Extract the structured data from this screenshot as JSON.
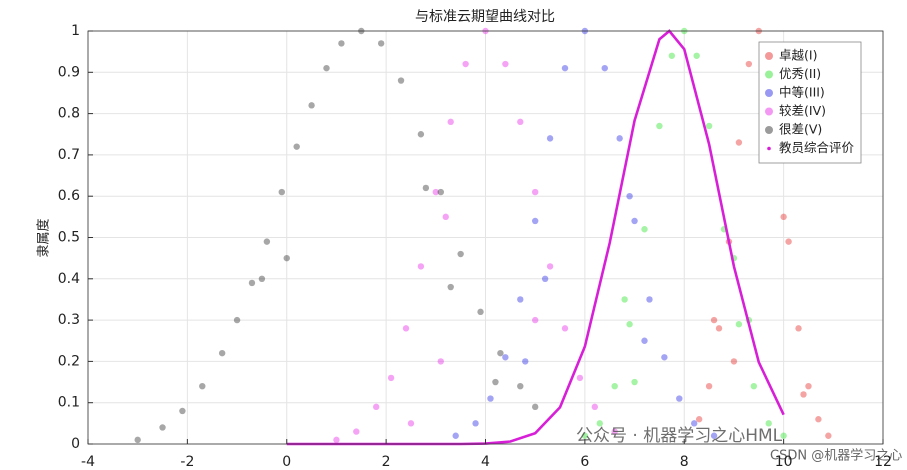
{
  "chart_data": {
    "type": "scatter",
    "title": "与标准云期望曲线对比",
    "y_label": "隶属度",
    "xlim": [
      -4,
      12
    ],
    "xticks": [
      -4,
      -2,
      0,
      2,
      4,
      6,
      8,
      10,
      12
    ],
    "ylim": [
      0,
      1
    ],
    "yticks": [
      0,
      0.1,
      0.2,
      0.3,
      0.4,
      0.5,
      0.6,
      0.7,
      0.8,
      0.9,
      1
    ],
    "grid": true,
    "legend": "upper right",
    "series": [
      {
        "name": "卓越(I)",
        "color": "#e51c1c",
        "mode": "markers",
        "x": [
          8.3,
          8.5,
          8.7,
          8.9,
          9.1,
          9.3,
          9.5,
          9.7,
          9.9,
          10.1,
          10.3,
          10.5,
          10.7,
          10.9,
          8.6,
          10.0,
          9.0,
          10.4
        ],
        "values": [
          0.06,
          0.14,
          0.28,
          0.49,
          0.73,
          0.92,
          1,
          0.92,
          0.73,
          0.49,
          0.28,
          0.14,
          0.06,
          0.02,
          0.3,
          0.55,
          0.2,
          0.12
        ]
      },
      {
        "name": "优秀(II)",
        "color": "#1ee01e",
        "mode": "markers",
        "x": [
          6.0,
          6.3,
          6.6,
          6.9,
          7.2,
          7.5,
          7.75,
          8,
          8.25,
          8.5,
          8.8,
          9.1,
          9.4,
          9.7,
          10,
          6.8,
          9.0,
          7.0,
          9.3
        ],
        "values": [
          0.02,
          0.05,
          0.14,
          0.29,
          0.52,
          0.77,
          0.94,
          1,
          0.94,
          0.77,
          0.52,
          0.29,
          0.14,
          0.05,
          0.02,
          0.35,
          0.45,
          0.15,
          0.3
        ]
      },
      {
        "name": "中等(III)",
        "color": "#1c1ce5",
        "mode": "markers",
        "x": [
          3.4,
          3.8,
          4.1,
          4.4,
          4.7,
          5.0,
          5.3,
          5.6,
          6,
          6.4,
          6.7,
          7.0,
          7.3,
          7.6,
          7.9,
          8.2,
          8.6,
          4.8,
          6.9,
          7.2,
          5.2
        ],
        "values": [
          0.02,
          0.05,
          0.11,
          0.21,
          0.35,
          0.54,
          0.74,
          0.91,
          1,
          0.91,
          0.74,
          0.54,
          0.35,
          0.21,
          0.11,
          0.05,
          0.02,
          0.2,
          0.6,
          0.25,
          0.4
        ]
      },
      {
        "name": "较差(IV)",
        "color": "#e51ce5",
        "mode": "markers",
        "x": [
          1.0,
          1.4,
          1.8,
          2.1,
          2.4,
          2.7,
          3.0,
          3.3,
          3.6,
          4,
          4.4,
          4.7,
          5.0,
          5.3,
          5.6,
          5.9,
          6.2,
          6.6,
          3.2,
          3.1,
          5.0,
          2.5
        ],
        "values": [
          0.01,
          0.03,
          0.09,
          0.16,
          0.28,
          0.43,
          0.61,
          0.78,
          0.92,
          1,
          0.92,
          0.78,
          0.61,
          0.43,
          0.28,
          0.16,
          0.09,
          0.03,
          0.55,
          0.2,
          0.3,
          0.05
        ]
      },
      {
        "name": "很差(V)",
        "color": "#222222",
        "mode": "markers",
        "x": [
          -3.0,
          -2.5,
          -2.1,
          -1.7,
          -1.3,
          -1.0,
          -0.7,
          -0.4,
          -0.1,
          0.2,
          0.5,
          0.8,
          1.1,
          1.5,
          1.9,
          2.3,
          2.7,
          3.1,
          3.5,
          3.9,
          4.3,
          4.7,
          5.0,
          -0.5,
          2.8,
          3.3,
          0,
          4.2
        ],
        "values": [
          0.01,
          0.04,
          0.08,
          0.14,
          0.22,
          0.3,
          0.39,
          0.49,
          0.61,
          0.72,
          0.82,
          0.91,
          0.97,
          1,
          0.97,
          0.88,
          0.75,
          0.61,
          0.46,
          0.32,
          0.22,
          0.14,
          0.09,
          0.4,
          0.62,
          0.38,
          0.45,
          0.15
        ]
      },
      {
        "name": "教员综合评价",
        "color": "#d81fd8",
        "mode": "line",
        "x": [
          0,
          1,
          2,
          3,
          3.5,
          4,
          4.5,
          5,
          5.5,
          6,
          6.5,
          7,
          7.5,
          7.7,
          8,
          8.5,
          9,
          9.5,
          10
        ],
        "values": [
          0,
          0,
          0,
          0,
          0,
          0.001,
          0.006,
          0.026,
          0.089,
          0.236,
          0.487,
          0.783,
          0.98,
          1,
          0.956,
          0.726,
          0.43,
          0.198,
          0.071
        ]
      }
    ],
    "watermark": [
      "公众号 · 机器学习之心HML",
      "CSDN @机器学习之心"
    ]
  }
}
